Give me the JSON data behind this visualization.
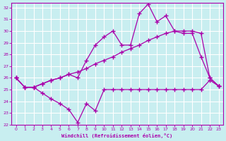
{
  "xlabel": "Windchill (Refroidissement éolien,°C)",
  "background_color": "#c8eef0",
  "grid_color": "#ffffff",
  "line_color": "#aa00aa",
  "xlim": [
    -0.5,
    23.5
  ],
  "ylim": [
    22,
    32.4
  ],
  "xticks": [
    0,
    1,
    2,
    3,
    4,
    5,
    6,
    7,
    8,
    9,
    10,
    11,
    12,
    13,
    14,
    15,
    16,
    17,
    18,
    19,
    20,
    21,
    22,
    23
  ],
  "yticks": [
    22,
    23,
    24,
    25,
    26,
    27,
    28,
    29,
    30,
    31,
    32
  ],
  "series1_x": [
    0,
    1,
    2,
    3,
    4,
    5,
    6,
    7,
    8,
    9,
    10,
    11,
    12,
    13,
    14,
    15,
    16,
    17,
    18,
    19,
    20,
    21,
    22,
    23
  ],
  "series1_y": [
    26.0,
    25.2,
    25.2,
    25.5,
    25.8,
    26.0,
    26.3,
    26.0,
    27.5,
    28.8,
    29.5,
    30.0,
    28.8,
    28.8,
    31.5,
    32.3,
    30.8,
    31.3,
    30.0,
    29.8,
    29.8,
    27.8,
    26.0,
    25.3
  ],
  "series2_x": [
    0,
    1,
    2,
    3,
    4,
    5,
    6,
    7,
    8,
    9,
    10,
    11,
    12,
    13,
    14,
    15,
    16,
    17,
    18,
    19,
    20,
    21,
    22,
    23
  ],
  "series2_y": [
    26.0,
    25.2,
    25.2,
    25.5,
    25.8,
    26.0,
    26.3,
    26.5,
    26.8,
    27.2,
    27.5,
    27.8,
    28.2,
    28.5,
    28.8,
    29.2,
    29.5,
    29.8,
    30.0,
    30.0,
    30.0,
    29.8,
    26.0,
    25.3
  ],
  "series3_x": [
    0,
    1,
    2,
    3,
    4,
    5,
    6,
    7,
    8,
    9,
    10,
    11,
    12,
    13,
    14,
    15,
    16,
    17,
    18,
    19,
    20,
    21,
    22,
    23
  ],
  "series3_y": [
    26.0,
    25.2,
    25.2,
    24.7,
    24.2,
    23.8,
    23.3,
    22.2,
    23.8,
    23.2,
    25.0,
    25.0,
    25.0,
    25.0,
    25.0,
    25.0,
    25.0,
    25.0,
    25.0,
    25.0,
    25.0,
    25.0,
    25.8,
    25.3
  ]
}
